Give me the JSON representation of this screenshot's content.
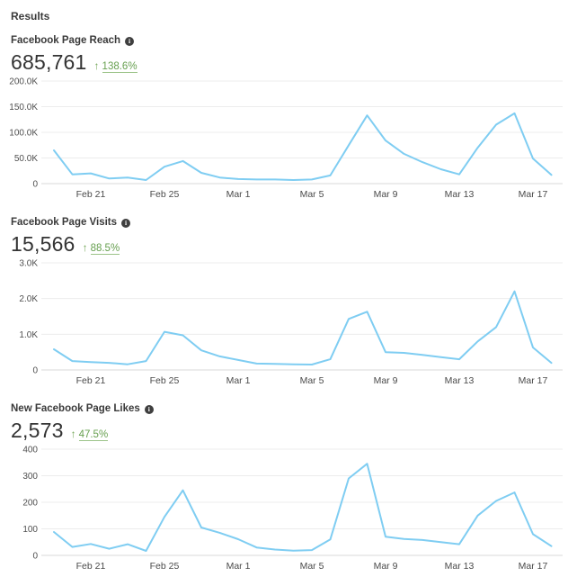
{
  "page": {
    "header": "Results"
  },
  "icons": {
    "info": "i",
    "up_arrow": "↑"
  },
  "colors": {
    "line": "#7fcdf2",
    "grid": "#ececec",
    "positive_green": "#67a050",
    "text_dark": "#3a3a3a"
  },
  "chart_data": [
    {
      "type": "line",
      "title": "Facebook Page Reach",
      "value": "685,761",
      "change": "138.6%",
      "change_direction": "up",
      "y_ticks": [
        "200.0K",
        "150.0K",
        "100.0K",
        "50.0K",
        "0"
      ],
      "y_max": 200000,
      "ylim": [
        0,
        200000
      ],
      "x_tick_labels": [
        "Feb 21",
        "Feb 25",
        "Mar 1",
        "Mar 5",
        "Mar 9",
        "Mar 13",
        "Mar 17"
      ],
      "x_tick_indices": [
        2,
        6,
        10,
        14,
        18,
        22,
        26
      ],
      "x": [
        "Feb 19",
        "Feb 20",
        "Feb 21",
        "Feb 22",
        "Feb 23",
        "Feb 24",
        "Feb 25",
        "Feb 26",
        "Feb 27",
        "Feb 28",
        "Mar 1",
        "Mar 2",
        "Mar 3",
        "Mar 4",
        "Mar 5",
        "Mar 6",
        "Mar 7",
        "Mar 8",
        "Mar 9",
        "Mar 10",
        "Mar 11",
        "Mar 12",
        "Mar 13",
        "Mar 14",
        "Mar 15",
        "Mar 16",
        "Mar 17",
        "Mar 18"
      ],
      "values": [
        65000,
        18000,
        20000,
        10000,
        12000,
        7000,
        33000,
        44000,
        21000,
        12000,
        9000,
        8000,
        8000,
        7000,
        8000,
        16000,
        75000,
        133000,
        84000,
        58000,
        42000,
        28000,
        18000,
        70000,
        115000,
        137000,
        49000,
        17000
      ]
    },
    {
      "type": "line",
      "title": "Facebook Page Visits",
      "value": "15,566",
      "change": "88.5%",
      "change_direction": "up",
      "y_ticks": [
        "3.0K",
        "2.0K",
        "1.0K",
        "0"
      ],
      "y_max": 3000,
      "ylim": [
        0,
        3000
      ],
      "x_tick_labels": [
        "Feb 21",
        "Feb 25",
        "Mar 1",
        "Mar 5",
        "Mar 9",
        "Mar 13",
        "Mar 17"
      ],
      "x_tick_indices": [
        2,
        6,
        10,
        14,
        18,
        22,
        26
      ],
      "x": [
        "Feb 19",
        "Feb 20",
        "Feb 21",
        "Feb 22",
        "Feb 23",
        "Feb 24",
        "Feb 25",
        "Feb 26",
        "Feb 27",
        "Feb 28",
        "Mar 1",
        "Mar 2",
        "Mar 3",
        "Mar 4",
        "Mar 5",
        "Mar 6",
        "Mar 7",
        "Mar 8",
        "Mar 9",
        "Mar 10",
        "Mar 11",
        "Mar 12",
        "Mar 13",
        "Mar 14",
        "Mar 15",
        "Mar 16",
        "Mar 17",
        "Mar 18"
      ],
      "values": [
        580,
        250,
        220,
        200,
        160,
        250,
        1070,
        970,
        550,
        380,
        280,
        180,
        170,
        160,
        150,
        300,
        1430,
        1630,
        500,
        480,
        420,
        360,
        300,
        800,
        1200,
        2200,
        630,
        200
      ]
    },
    {
      "type": "line",
      "title": "New Facebook Page Likes",
      "value": "2,573",
      "change": "47.5%",
      "change_direction": "up",
      "y_ticks": [
        "400",
        "300",
        "200",
        "100",
        "0"
      ],
      "y_max": 400,
      "ylim": [
        0,
        400
      ],
      "x_tick_labels": [
        "Feb 21",
        "Feb 25",
        "Mar 1",
        "Mar 5",
        "Mar 9",
        "Mar 13",
        "Mar 17"
      ],
      "x_tick_indices": [
        2,
        6,
        10,
        14,
        18,
        22,
        26
      ],
      "x": [
        "Feb 19",
        "Feb 20",
        "Feb 21",
        "Feb 22",
        "Feb 23",
        "Feb 24",
        "Feb 25",
        "Feb 26",
        "Feb 27",
        "Feb 28",
        "Mar 1",
        "Mar 2",
        "Mar 3",
        "Mar 4",
        "Mar 5",
        "Mar 6",
        "Mar 7",
        "Mar 8",
        "Mar 9",
        "Mar 10",
        "Mar 11",
        "Mar 12",
        "Mar 13",
        "Mar 14",
        "Mar 15",
        "Mar 16",
        "Mar 17",
        "Mar 18"
      ],
      "values": [
        88,
        32,
        43,
        25,
        42,
        17,
        145,
        245,
        105,
        85,
        61,
        30,
        22,
        18,
        20,
        60,
        290,
        345,
        70,
        62,
        58,
        50,
        42,
        150,
        205,
        237,
        80,
        35
      ]
    }
  ]
}
